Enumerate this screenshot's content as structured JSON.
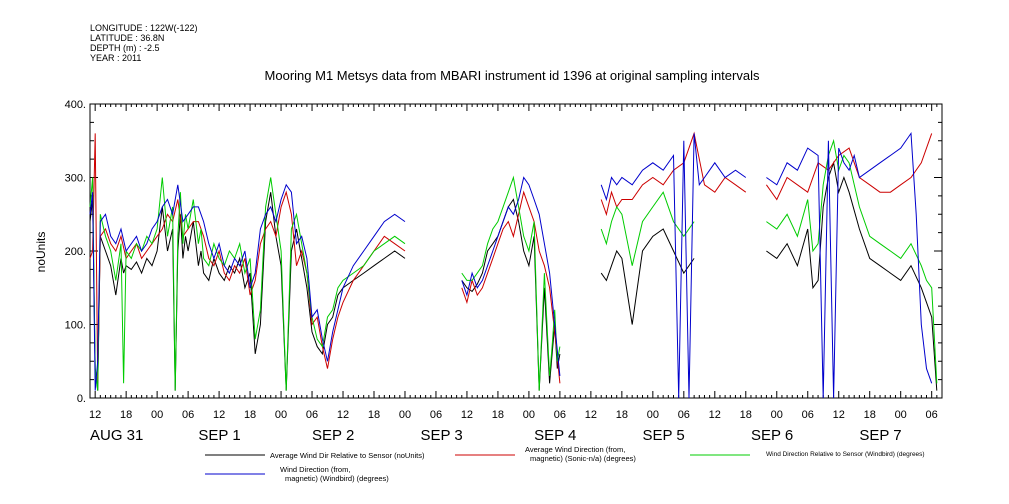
{
  "meta": {
    "longitude": "LONGITUDE : 122W(-122)",
    "latitude": "LATITUDE : 36.8N",
    "depth": "DEPTH (m) : -2.5",
    "year": "YEAR : 2011"
  },
  "chart_data": {
    "type": "line",
    "title": "Mooring M1 Metsys data from MBARI instrument id 1396 at original sampling intervals",
    "ylabel": "noUnits",
    "xlabel": "",
    "ylim": [
      0,
      400
    ],
    "yticks": [
      0,
      100,
      200,
      300,
      400
    ],
    "ytick_labels": [
      "0.",
      "100.",
      "200.",
      "300.",
      "400."
    ],
    "xlim_hours": [
      -13,
      152
    ],
    "hour_ticks": [
      {
        "h": -12,
        "label": "12"
      },
      {
        "h": -6,
        "label": "18"
      },
      {
        "h": 0,
        "label": "00"
      },
      {
        "h": 6,
        "label": "06"
      },
      {
        "h": 12,
        "label": "12"
      },
      {
        "h": 18,
        "label": "18"
      },
      {
        "h": 24,
        "label": "00"
      },
      {
        "h": 30,
        "label": "06"
      },
      {
        "h": 36,
        "label": "12"
      },
      {
        "h": 42,
        "label": "18"
      },
      {
        "h": 48,
        "label": "00"
      },
      {
        "h": 54,
        "label": "06"
      },
      {
        "h": 60,
        "label": "12"
      },
      {
        "h": 66,
        "label": "18"
      },
      {
        "h": 72,
        "label": "00"
      },
      {
        "h": 78,
        "label": "06"
      },
      {
        "h": 84,
        "label": "12"
      },
      {
        "h": 90,
        "label": "18"
      },
      {
        "h": 96,
        "label": "00"
      },
      {
        "h": 102,
        "label": "06"
      },
      {
        "h": 108,
        "label": "12"
      },
      {
        "h": 114,
        "label": "18"
      },
      {
        "h": 120,
        "label": "00"
      },
      {
        "h": 126,
        "label": "06"
      },
      {
        "h": 132,
        "label": "12"
      },
      {
        "h": 138,
        "label": "18"
      },
      {
        "h": 144,
        "label": "00"
      },
      {
        "h": 150,
        "label": "06"
      }
    ],
    "date_labels": [
      {
        "h": -13,
        "label": "AUG 31"
      },
      {
        "h": 8,
        "label": "SEP  1"
      },
      {
        "h": 30,
        "label": "SEP  2"
      },
      {
        "h": 51,
        "label": "SEP  3"
      },
      {
        "h": 73,
        "label": "SEP  4"
      },
      {
        "h": 94,
        "label": "SEP  5"
      },
      {
        "h": 115,
        "label": "SEP  6"
      },
      {
        "h": 136,
        "label": "SEP  7"
      }
    ],
    "series": [
      {
        "name": "Average Wind Dir Relative to Sensor (noUnits)",
        "color": "#000000",
        "x": [
          -13,
          -12.5,
          -12,
          -11.5,
          -11,
          -10,
          -9,
          -8,
          -7,
          -6.5,
          -6,
          -5,
          -4,
          -3,
          -2,
          -1,
          0,
          1,
          2,
          3,
          3.5,
          4,
          4.5,
          5,
          5.5,
          6,
          7,
          8,
          8.5,
          9,
          10,
          11,
          12,
          13,
          14,
          15,
          16,
          17,
          18,
          19,
          20,
          21,
          22,
          23,
          24,
          25,
          26,
          27,
          28,
          29,
          30,
          31,
          32,
          33,
          34,
          35,
          36,
          38,
          40,
          42,
          44,
          46,
          48,
          null,
          59,
          60,
          61,
          62,
          63,
          64,
          65,
          66,
          67,
          68,
          69,
          70,
          71,
          72,
          73,
          74,
          75,
          76,
          76.5,
          77,
          77.5,
          78,
          null,
          86,
          87,
          88,
          89,
          90,
          92,
          94,
          96,
          98,
          100,
          102,
          104,
          null,
          118,
          120,
          122,
          124,
          126,
          127,
          128,
          129,
          130,
          131,
          132,
          133,
          134,
          136,
          138,
          140,
          142,
          144,
          146,
          148,
          149,
          150,
          151
        ],
        "y": [
          240,
          270,
          40,
          10,
          220,
          200,
          180,
          140,
          190,
          170,
          180,
          175,
          185,
          170,
          190,
          180,
          200,
          260,
          200,
          230,
          10,
          200,
          250,
          190,
          220,
          200,
          240,
          180,
          200,
          170,
          160,
          190,
          170,
          160,
          180,
          170,
          190,
          150,
          170,
          60,
          100,
          240,
          280,
          220,
          180,
          10,
          200,
          230,
          190,
          150,
          90,
          70,
          60,
          100,
          110,
          140,
          150,
          160,
          170,
          180,
          190,
          200,
          190,
          null,
          160,
          150,
          145,
          155,
          170,
          200,
          210,
          220,
          240,
          260,
          270,
          240,
          200,
          180,
          220,
          10,
          150,
          20,
          60,
          100,
          40,
          60,
          null,
          170,
          160,
          180,
          200,
          190,
          100,
          200,
          220,
          230,
          200,
          170,
          190,
          null,
          200,
          190,
          210,
          180,
          230,
          150,
          160,
          260,
          300,
          320,
          280,
          300,
          280,
          230,
          190,
          180,
          170,
          160,
          180,
          150,
          130,
          110,
          10
        ]
      },
      {
        "name": "Average Wind Direction (from, magnetic) (Sonic-n/a) (degrees)",
        "color": "#cc0000",
        "x": [
          -13,
          -12.5,
          -12,
          -11.5,
          -11,
          -10,
          -9,
          -8,
          -7,
          -6,
          -5,
          -4,
          -3,
          -2,
          -1,
          0,
          1,
          2,
          3,
          4,
          5,
          6,
          7,
          8,
          9,
          10,
          11,
          12,
          13,
          14,
          15,
          16,
          17,
          18,
          19,
          20,
          21,
          22,
          23,
          24,
          25,
          26,
          27,
          28,
          29,
          30,
          31,
          32,
          33,
          34,
          35,
          36,
          38,
          40,
          42,
          44,
          46,
          48,
          null,
          59,
          60,
          61,
          62,
          63,
          64,
          65,
          66,
          67,
          68,
          69,
          70,
          71,
          72,
          73,
          74,
          75,
          76,
          77,
          78,
          null,
          86,
          87,
          88,
          89,
          90,
          92,
          94,
          96,
          98,
          100,
          102,
          104,
          106,
          108,
          110,
          112,
          114,
          null,
          118,
          120,
          122,
          124,
          126,
          128,
          130,
          132,
          134,
          136,
          138,
          140,
          142,
          144,
          146,
          148,
          150
        ],
        "y": [
          190,
          200,
          360,
          20,
          220,
          230,
          210,
          200,
          220,
          190,
          200,
          210,
          190,
          200,
          210,
          220,
          230,
          250,
          240,
          270,
          220,
          230,
          240,
          240,
          220,
          190,
          180,
          200,
          170,
          160,
          180,
          170,
          190,
          140,
          160,
          210,
          230,
          240,
          220,
          260,
          280,
          250,
          180,
          200,
          170,
          100,
          110,
          70,
          40,
          80,
          110,
          130,
          160,
          180,
          200,
          220,
          210,
          200,
          null,
          150,
          130,
          160,
          140,
          150,
          170,
          190,
          210,
          230,
          240,
          220,
          250,
          280,
          260,
          240,
          200,
          180,
          150,
          90,
          20,
          null,
          270,
          250,
          280,
          260,
          270,
          270,
          290,
          300,
          290,
          310,
          320,
          360,
          290,
          280,
          300,
          290,
          280,
          null,
          290,
          270,
          300,
          290,
          280,
          320,
          310,
          330,
          340,
          300,
          290,
          280,
          280,
          290,
          300,
          320,
          360
        ]
      },
      {
        "name": "Wind Direction Relative to Sensor (Windbird) (degrees)",
        "color": "#00cc00",
        "x": [
          -13,
          -12.5,
          -12,
          -11.5,
          -11,
          -10,
          -9,
          -8,
          -7,
          -6.5,
          -6,
          -5,
          -4,
          -3,
          -2,
          -1,
          0,
          1,
          2,
          3,
          3.5,
          4,
          4.5,
          5,
          5.5,
          6,
          7,
          8,
          8.5,
          9,
          10,
          11,
          12,
          13,
          14,
          15,
          16,
          17,
          18,
          19,
          20,
          21,
          22,
          23,
          24,
          25,
          26,
          27,
          28,
          29,
          30,
          31,
          32,
          33,
          34,
          35,
          36,
          38,
          40,
          42,
          44,
          46,
          48,
          null,
          59,
          60,
          61,
          62,
          63,
          64,
          65,
          66,
          67,
          68,
          69,
          70,
          71,
          72,
          73,
          74,
          75,
          76,
          76.5,
          77,
          77.5,
          78,
          null,
          86,
          87,
          88,
          89,
          90,
          92,
          94,
          96,
          98,
          100,
          102,
          104,
          null,
          118,
          120,
          122,
          124,
          126,
          127,
          128,
          129,
          130,
          131,
          132,
          133,
          134,
          136,
          138,
          140,
          142,
          144,
          146,
          148,
          149,
          150,
          151
        ],
        "y": [
          260,
          300,
          40,
          10,
          250,
          220,
          200,
          160,
          210,
          20,
          200,
          190,
          210,
          200,
          220,
          210,
          230,
          300,
          220,
          260,
          10,
          220,
          280,
          210,
          250,
          230,
          270,
          210,
          230,
          190,
          180,
          210,
          190,
          180,
          200,
          190,
          210,
          170,
          190,
          80,
          120,
          260,
          300,
          250,
          200,
          10,
          230,
          250,
          210,
          170,
          110,
          80,
          70,
          110,
          120,
          150,
          160,
          170,
          180,
          200,
          210,
          220,
          210,
          null,
          170,
          160,
          160,
          170,
          180,
          210,
          230,
          240,
          260,
          280,
          300,
          260,
          220,
          200,
          240,
          10,
          170,
          30,
          70,
          120,
          50,
          70,
          null,
          230,
          210,
          240,
          260,
          250,
          180,
          240,
          260,
          280,
          240,
          220,
          240,
          null,
          240,
          230,
          250,
          220,
          270,
          200,
          210,
          290,
          330,
          350,
          310,
          330,
          320,
          260,
          220,
          210,
          200,
          190,
          210,
          180,
          160,
          150,
          20
        ]
      },
      {
        "name": "Wind Direction (from, magnetic) (Windbird) (degrees)",
        "color": "#0000cc",
        "x": [
          -13,
          -12.5,
          -12,
          -11.5,
          -11,
          -10,
          -9,
          -8,
          -7,
          -6,
          -5,
          -4,
          -3,
          -2,
          -1,
          0,
          1,
          2,
          3,
          4,
          5,
          6,
          7,
          8,
          9,
          10,
          11,
          12,
          13,
          14,
          15,
          16,
          17,
          18,
          19,
          20,
          21,
          22,
          23,
          24,
          25,
          26,
          27,
          28,
          29,
          30,
          31,
          32,
          33,
          34,
          35,
          36,
          38,
          40,
          42,
          44,
          46,
          48,
          null,
          59,
          60,
          61,
          62,
          63,
          64,
          65,
          66,
          67,
          68,
          69,
          70,
          71,
          72,
          73,
          74,
          75,
          76,
          77,
          78,
          null,
          86,
          87,
          88,
          89,
          90,
          92,
          94,
          96,
          98,
          100,
          101,
          102,
          103,
          104,
          105,
          106,
          107,
          108,
          110,
          112,
          114,
          null,
          118,
          120,
          122,
          124,
          126,
          128,
          129,
          130,
          131,
          132,
          133,
          134,
          135,
          136,
          138,
          140,
          142,
          144,
          146,
          147,
          148,
          149,
          150
        ],
        "y": [
          250,
          280,
          10,
          50,
          240,
          250,
          220,
          210,
          230,
          200,
          210,
          220,
          200,
          210,
          230,
          240,
          260,
          270,
          250,
          290,
          240,
          250,
          260,
          260,
          240,
          210,
          190,
          210,
          180,
          170,
          190,
          180,
          200,
          150,
          170,
          230,
          250,
          260,
          240,
          270,
          290,
          280,
          210,
          220,
          190,
          110,
          120,
          80,
          50,
          90,
          120,
          150,
          180,
          200,
          220,
          240,
          250,
          240,
          null,
          160,
          140,
          170,
          150,
          160,
          180,
          200,
          220,
          240,
          260,
          250,
          270,
          300,
          290,
          270,
          250,
          210,
          170,
          100,
          30,
          null,
          290,
          270,
          300,
          290,
          300,
          290,
          310,
          320,
          310,
          330,
          0,
          350,
          0,
          360,
          290,
          300,
          310,
          320,
          300,
          310,
          300,
          null,
          300,
          290,
          320,
          310,
          340,
          330,
          0,
          350,
          0,
          340,
          320,
          310,
          330,
          300,
          310,
          320,
          330,
          340,
          360,
          250,
          100,
          40,
          20
        ]
      }
    ],
    "legend_placement": "bottom"
  }
}
